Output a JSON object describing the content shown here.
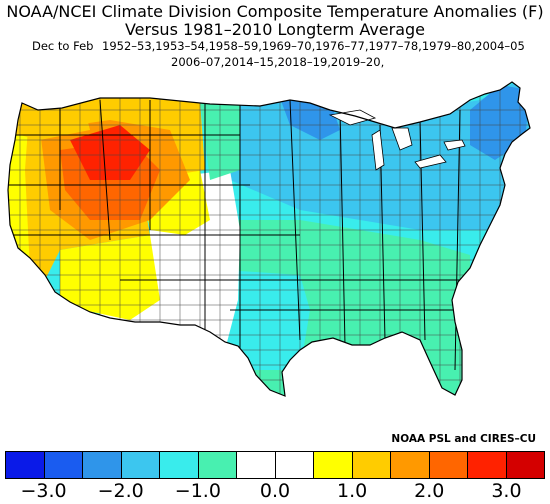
{
  "title_line1": "NOAA/NCEI Climate Division Composite Temperature Anomalies (F)",
  "title_line2": "Versus 1981–2010 Longterm Average",
  "season_label": "Dec to Feb",
  "years_line1": "1952–53,1953–54,1958–59,1969–70,1976–77,1977–78,1979–80,2004–05",
  "years_line2": "2006–07,2014–15,2018–19,2019–20,",
  "credit": "NOAA PSL and CIRES–CU",
  "colorbar": {
    "colors": [
      "#0a1ae8",
      "#1a5cf0",
      "#2f95ea",
      "#3cc6ef",
      "#39ecec",
      "#48f0b0",
      "#ffffff",
      "#ffffff",
      "#ffff00",
      "#ffcc00",
      "#ff9900",
      "#ff6600",
      "#ff2200",
      "#d40000"
    ],
    "ticks": [
      {
        "label": "−3.0",
        "value": -3.0
      },
      {
        "label": "−2.0",
        "value": -2.0
      },
      {
        "label": "−1.0",
        "value": -1.0
      },
      {
        "label": "0.0",
        "value": 0.0
      },
      {
        "label": "1.0",
        "value": 1.0
      },
      {
        "label": "2.0",
        "value": 2.0
      },
      {
        "label": "3.0",
        "value": 3.0
      }
    ],
    "min": -3.5,
    "max": 3.5
  },
  "regions": [
    {
      "name": "pacific-northwest",
      "color": "#ffcc00"
    },
    {
      "name": "pacific-coast",
      "color": "#ffff00"
    },
    {
      "name": "california",
      "color": "#ffcc00"
    },
    {
      "name": "great-basin",
      "color": "#ff9900"
    },
    {
      "name": "utah-core",
      "color": "#ff6600"
    },
    {
      "name": "idaho-wyoming-core",
      "color": "#ff2200"
    },
    {
      "name": "southwest",
      "color": "#ffff00"
    },
    {
      "name": "colorado-plateau",
      "color": "#ffff00"
    },
    {
      "name": "plains-neutral",
      "color": "#ffffff"
    },
    {
      "name": "great-lakes",
      "color": "#3cc6ef"
    },
    {
      "name": "northeast",
      "color": "#2f95ea"
    },
    {
      "name": "upper-midwest",
      "color": "#2f95ea"
    },
    {
      "name": "southern-plains",
      "color": "#48f0b0"
    },
    {
      "name": "southeast",
      "color": "#48f0b0"
    },
    {
      "name": "mid-atlantic",
      "color": "#39ecec"
    },
    {
      "name": "texas",
      "color": "#39ecec"
    }
  ]
}
